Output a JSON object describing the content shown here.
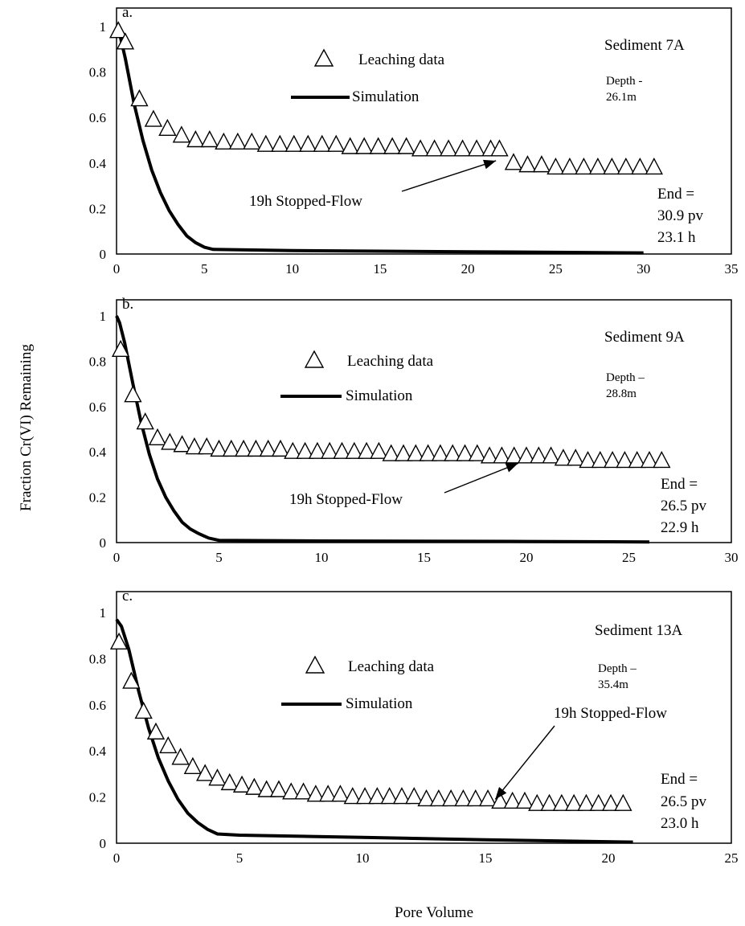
{
  "ylabel": "Fraction Cr(VI) Remaining",
  "xlabel": "Pore Volume",
  "chart_data": [
    {
      "type": "scatter",
      "panel_label": "a.",
      "sediment": "Sediment 7A",
      "depth_line1": "Depth -",
      "depth_line2": "26.1m",
      "legend": {
        "data": "Leaching data",
        "sim": "Simulation"
      },
      "stopped_flow": "19h Stopped-Flow",
      "arrow_target": [
        21.6,
        0.41
      ],
      "end_lines": [
        "End =",
        "30.9 pv",
        "23.1 h"
      ],
      "xlim": [
        0,
        35
      ],
      "ylim": [
        0,
        1
      ],
      "xticks": [
        0,
        5,
        10,
        15,
        20,
        25,
        30,
        35
      ],
      "yticks": [
        0,
        0.2,
        0.4,
        0.6,
        0.8,
        1
      ],
      "series": [
        {
          "type": "scatter",
          "x": [
            0.1,
            0.5,
            1.3,
            2.1,
            2.9,
            3.7,
            4.5,
            5.3,
            6.1,
            6.9,
            7.7,
            8.5,
            9.3,
            10.1,
            10.9,
            11.7,
            12.5,
            13.3,
            14.1,
            14.9,
            15.7,
            16.5,
            17.3,
            18.1,
            18.9,
            19.7,
            20.5,
            21.3,
            21.8,
            22.6,
            23.4,
            24.2,
            25.0,
            25.8,
            26.6,
            27.4,
            28.2,
            29.0,
            29.8,
            30.6
          ],
          "y": [
            0.98,
            0.93,
            0.68,
            0.59,
            0.55,
            0.52,
            0.5,
            0.5,
            0.49,
            0.49,
            0.49,
            0.48,
            0.48,
            0.48,
            0.48,
            0.48,
            0.48,
            0.47,
            0.47,
            0.47,
            0.47,
            0.47,
            0.46,
            0.46,
            0.46,
            0.46,
            0.46,
            0.46,
            0.46,
            0.4,
            0.39,
            0.39,
            0.38,
            0.38,
            0.38,
            0.38,
            0.38,
            0.38,
            0.38,
            0.38
          ]
        },
        {
          "type": "line",
          "x": [
            0,
            0.2,
            0.5,
            1,
            1.5,
            2,
            2.5,
            3,
            3.5,
            4,
            4.5,
            5,
            5.5,
            10,
            20,
            30
          ],
          "y": [
            1.0,
            0.96,
            0.86,
            0.66,
            0.5,
            0.37,
            0.27,
            0.19,
            0.13,
            0.08,
            0.05,
            0.03,
            0.02,
            0.015,
            0.01,
            0.005
          ]
        }
      ]
    },
    {
      "type": "scatter",
      "panel_label": "b.",
      "sediment": "Sediment 9A",
      "depth_line1": "Depth –",
      "depth_line2": "28.8m",
      "legend": {
        "data": "Leaching data",
        "sim": "Simulation"
      },
      "stopped_flow": "19h Stopped-Flow",
      "arrow_target": [
        19.6,
        0.35
      ],
      "end_lines": [
        "End =",
        "26.5 pv",
        "22.9 h"
      ],
      "xlim": [
        0,
        30
      ],
      "ylim": [
        0,
        1
      ],
      "xticks": [
        0,
        5,
        10,
        15,
        20,
        25,
        30
      ],
      "yticks": [
        0,
        0.2,
        0.4,
        0.6,
        0.8,
        1
      ],
      "series": [
        {
          "type": "scatter",
          "x": [
            0.2,
            0.8,
            1.4,
            2.0,
            2.6,
            3.2,
            3.8,
            4.4,
            5.0,
            5.6,
            6.2,
            6.8,
            7.4,
            8.0,
            8.6,
            9.2,
            9.8,
            10.4,
            11.0,
            11.6,
            12.2,
            12.8,
            13.4,
            14.0,
            14.6,
            15.2,
            15.8,
            16.4,
            17.0,
            17.6,
            18.2,
            18.8,
            19.4,
            20.0,
            20.6,
            21.2,
            21.8,
            22.4,
            23.0,
            23.6,
            24.2,
            24.8,
            25.4,
            26.0,
            26.6
          ],
          "y": [
            0.85,
            0.65,
            0.53,
            0.46,
            0.44,
            0.43,
            0.42,
            0.42,
            0.41,
            0.41,
            0.41,
            0.41,
            0.41,
            0.41,
            0.4,
            0.4,
            0.4,
            0.4,
            0.4,
            0.4,
            0.4,
            0.4,
            0.39,
            0.39,
            0.39,
            0.39,
            0.39,
            0.39,
            0.39,
            0.39,
            0.38,
            0.38,
            0.38,
            0.38,
            0.38,
            0.38,
            0.37,
            0.37,
            0.36,
            0.36,
            0.36,
            0.36,
            0.36,
            0.36,
            0.36
          ]
        },
        {
          "type": "line",
          "x": [
            0,
            0.15,
            0.4,
            0.8,
            1.2,
            1.6,
            2.0,
            2.4,
            2.8,
            3.2,
            3.6,
            4.0,
            4.5,
            5.0,
            10,
            20,
            26
          ],
          "y": [
            1.0,
            0.97,
            0.88,
            0.7,
            0.53,
            0.39,
            0.28,
            0.2,
            0.14,
            0.09,
            0.06,
            0.04,
            0.02,
            0.01,
            0.007,
            0.005,
            0.003
          ]
        }
      ]
    },
    {
      "type": "scatter",
      "panel_label": "c.",
      "sediment": "Sediment 13A",
      "depth_line1": "Depth –",
      "depth_line2": "35.4m",
      "legend": {
        "data": "Leaching data",
        "sim": "Simulation"
      },
      "stopped_flow": "19h Stopped-Flow",
      "arrow_target": [
        15.4,
        0.19
      ],
      "end_lines": [
        "End =",
        "26.5 pv",
        "23.0 h"
      ],
      "xlim": [
        0,
        25
      ],
      "ylim": [
        0,
        1
      ],
      "xticks": [
        0,
        5,
        10,
        15,
        20,
        25
      ],
      "yticks": [
        0,
        0.2,
        0.4,
        0.6,
        0.8,
        1
      ],
      "series": [
        {
          "type": "scatter",
          "x": [
            0.1,
            0.6,
            1.1,
            1.6,
            2.1,
            2.6,
            3.1,
            3.6,
            4.1,
            4.6,
            5.1,
            5.6,
            6.1,
            6.6,
            7.1,
            7.6,
            8.1,
            8.6,
            9.1,
            9.6,
            10.1,
            10.6,
            11.1,
            11.6,
            12.1,
            12.6,
            13.1,
            13.6,
            14.1,
            14.6,
            15.1,
            15.6,
            16.1,
            16.6,
            17.1,
            17.6,
            18.1,
            18.6,
            19.1,
            19.6,
            20.1,
            20.6
          ],
          "y": [
            0.87,
            0.7,
            0.57,
            0.48,
            0.42,
            0.37,
            0.33,
            0.3,
            0.28,
            0.26,
            0.25,
            0.24,
            0.23,
            0.23,
            0.22,
            0.22,
            0.21,
            0.21,
            0.21,
            0.2,
            0.2,
            0.2,
            0.2,
            0.2,
            0.2,
            0.19,
            0.19,
            0.19,
            0.19,
            0.19,
            0.19,
            0.18,
            0.18,
            0.18,
            0.17,
            0.17,
            0.17,
            0.17,
            0.17,
            0.17,
            0.17,
            0.17
          ]
        },
        {
          "type": "line",
          "x": [
            0,
            0.2,
            0.5,
            0.9,
            1.3,
            1.7,
            2.1,
            2.5,
            2.9,
            3.3,
            3.7,
            4.1,
            5,
            10,
            15,
            21
          ],
          "y": [
            0.97,
            0.94,
            0.84,
            0.66,
            0.5,
            0.37,
            0.27,
            0.19,
            0.13,
            0.09,
            0.06,
            0.04,
            0.035,
            0.025,
            0.015,
            0.005
          ]
        }
      ]
    }
  ]
}
